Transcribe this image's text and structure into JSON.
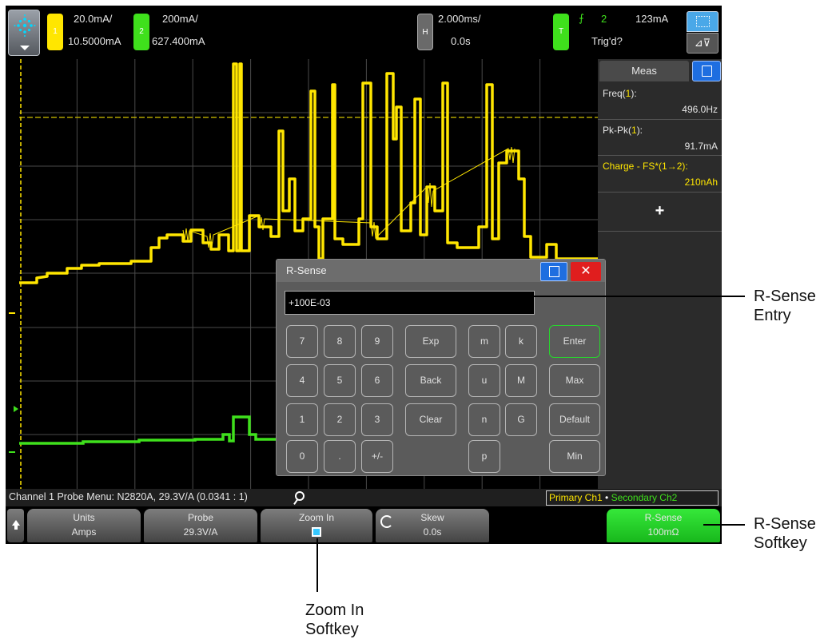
{
  "top_bar": {
    "ch1_chip": "1",
    "ch1_scale": "20.0mA/",
    "ch1_offset": "10.5000mA",
    "ch2_chip": "2",
    "ch2_scale": "200mA/",
    "ch2_offset": "627.400mA",
    "horiz_chip": "H",
    "time_scale": "2.000ms/",
    "time_delay": "0.0s",
    "trig_chip": "T",
    "trig_channel": "2",
    "trig_level": "123mA",
    "trig_status": "Trig'd?"
  },
  "measurements": {
    "tab_label": "Meas",
    "items": [
      {
        "label_pre": "Freq(",
        "label_ch": "1",
        "label_post": "):",
        "value": "496.0Hz"
      },
      {
        "label_pre": "Pk-Pk(",
        "label_ch": "1",
        "label_post": "):",
        "value": "91.7mA"
      },
      {
        "label_pre": "Charge - FS*(1→2):",
        "label_ch": "",
        "label_post": "",
        "value": "210nAh"
      }
    ],
    "add_label": "+"
  },
  "rsense_dialog": {
    "title": "R-Sense",
    "close_glyph": "✕",
    "entry_value": "+100E-03",
    "keys": {
      "k7": "7",
      "k8": "8",
      "k9": "9",
      "exp": "Exp",
      "m_small": "m",
      "k_small": "k",
      "enter": "Enter",
      "k4": "4",
      "k5": "5",
      "k6": "6",
      "back": "Back",
      "u_small": "u",
      "M_big": "M",
      "max": "Max",
      "k1": "1",
      "k2": "2",
      "k3": "3",
      "clear": "Clear",
      "n_small": "n",
      "G_big": "G",
      "default": "Default",
      "k0": "0",
      "dot": ".",
      "plusminus": "+/-",
      "p_small": "p",
      "min": "Min"
    }
  },
  "probe_line": {
    "text": "Channel 1 Probe Menu: N2820A, 29.3V/A (0.0341 : 1)",
    "primary": "Primary Ch1",
    "separator": "•",
    "secondary": "Secondary Ch2"
  },
  "softkeys": {
    "units_label": "Units",
    "units_value": "Amps",
    "probe_label": "Probe",
    "probe_value": "29.3V/A",
    "zoom_label": "Zoom In",
    "skew_label": "Skew",
    "skew_value": "0.0s",
    "rsense_label": "R-Sense",
    "rsense_value": "100mΩ"
  },
  "channel_markers": {
    "ch1": "1",
    "trig": "T",
    "ch2": "2"
  },
  "callouts": {
    "rsense_entry": [
      "R-Sense",
      "Entry"
    ],
    "rsense_softkey": [
      "R-Sense",
      "Softkey"
    ],
    "zoom_softkey": [
      "Zoom In",
      "Softkey"
    ]
  },
  "colors": {
    "ch1": "#ffe600",
    "ch2": "#3fe01c",
    "accent_blue": "#1e6ee0",
    "close_red": "#e01e1e"
  }
}
